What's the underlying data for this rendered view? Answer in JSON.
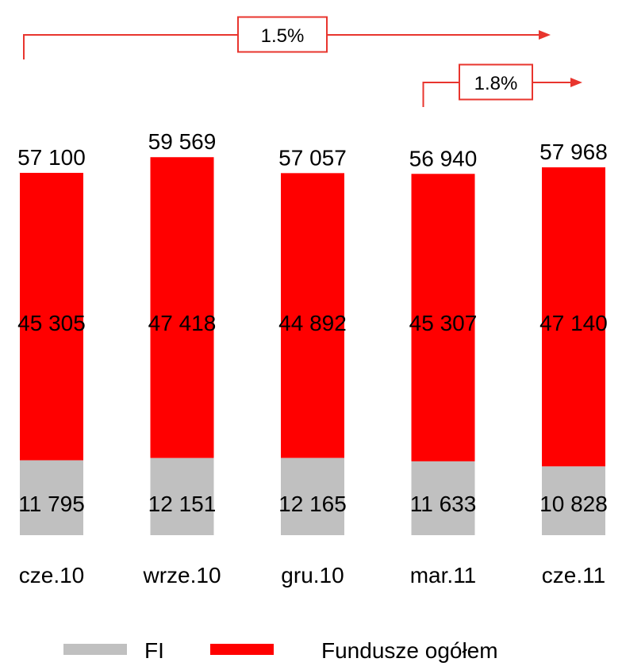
{
  "colors": {
    "fi": "#c0c0c0",
    "total": "#ff0000",
    "arrow": "#e8352e",
    "text": "#000000"
  },
  "chart_data": {
    "type": "bar",
    "stacked": true,
    "categories": [
      "cze.10",
      "wrze.10",
      "gru.10",
      "mar.11",
      "cze.11"
    ],
    "series": [
      {
        "name": "FI",
        "color": "#c0c0c0",
        "values": [
          11795,
          12151,
          12165,
          11633,
          10828
        ]
      },
      {
        "name": "Fundusze ogółem",
        "color": "#ff0000",
        "values": [
          45305,
          47418,
          44892,
          45307,
          47140
        ]
      }
    ],
    "totals": [
      57100,
      59569,
      57057,
      56940,
      57968
    ],
    "value_labels": {
      "fi": [
        "11 795",
        "12 151",
        "12 165",
        "11 633",
        "10 828"
      ],
      "total_segment": [
        "45 305",
        "47 418",
        "44 892",
        "45 307",
        "47 140"
      ],
      "totals": [
        "57 100",
        "59 569",
        "57 057",
        "56 940",
        "57 968"
      ]
    },
    "annotations": [
      {
        "text": "1.5%",
        "from_category": "cze.10",
        "to_category": "cze.11"
      },
      {
        "text": "1.8%",
        "from_category": "mar.11",
        "to_category": "cze.11"
      }
    ],
    "legend": {
      "position": "bottom",
      "entries": [
        "FI",
        "Fundusze ogółem"
      ]
    },
    "title": "",
    "xlabel": "",
    "ylabel": "",
    "grid": false
  }
}
